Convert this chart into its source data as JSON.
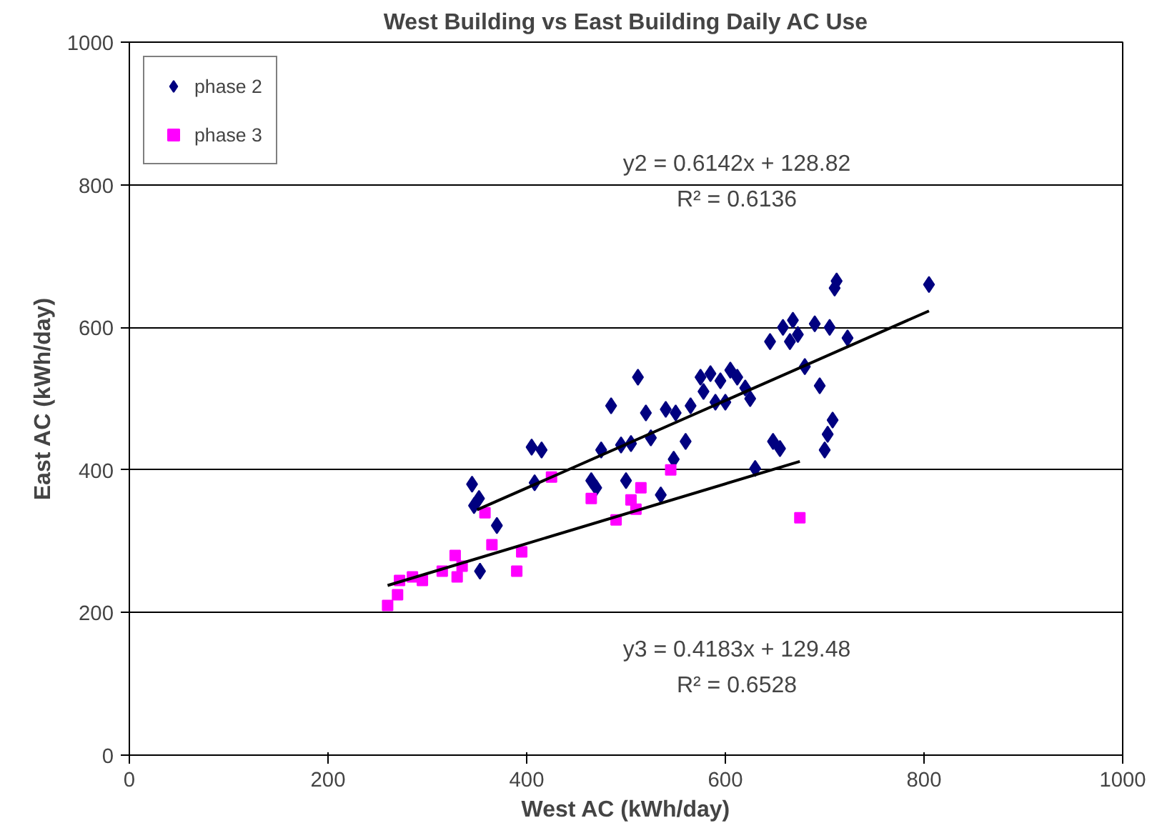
{
  "chart_data": {
    "type": "scatter",
    "title": "West Building vs East Building Daily AC Use",
    "xlabel": "West AC (kWh/day)",
    "ylabel": "East AC (kWh/day)",
    "xlim": [
      0,
      1000
    ],
    "ylim": [
      0,
      1000
    ],
    "xticks": [
      0,
      200,
      400,
      600,
      800,
      1000
    ],
    "yticks": [
      0,
      200,
      400,
      600,
      800,
      1000
    ],
    "grid": "y",
    "legend": "top left",
    "series": [
      {
        "name": "phase 2",
        "color": "#000080",
        "marker": "diamond",
        "x": [
          345,
          347,
          352,
          353,
          370,
          405,
          415,
          408,
          465,
          470,
          475,
          485,
          495,
          500,
          505,
          512,
          520,
          525,
          535,
          540,
          548,
          550,
          560,
          565,
          575,
          578,
          585,
          590,
          595,
          605,
          612,
          620,
          625,
          630,
          645,
          648,
          655,
          658,
          665,
          668,
          673,
          680,
          690,
          695,
          700,
          703,
          708,
          705,
          710,
          712,
          723,
          805,
          600
        ],
        "values": [
          380,
          350,
          360,
          258,
          322,
          432,
          428,
          382,
          385,
          375,
          428,
          490,
          435,
          385,
          437,
          530,
          480,
          445,
          365,
          485,
          415,
          480,
          440,
          490,
          530,
          510,
          535,
          495,
          525,
          540,
          530,
          515,
          500,
          402,
          580,
          440,
          430,
          600,
          580,
          610,
          590,
          545,
          605,
          518,
          428,
          450,
          470,
          600,
          655,
          665,
          585,
          660,
          495
        ]
      },
      {
        "name": "phase 3",
        "color": "#ff00ff",
        "marker": "square",
        "x": [
          260,
          270,
          272,
          285,
          295,
          315,
          328,
          330,
          335,
          358,
          365,
          390,
          395,
          425,
          465,
          490,
          505,
          510,
          515,
          545,
          675
        ],
        "values": [
          210,
          225,
          245,
          250,
          245,
          258,
          280,
          250,
          265,
          340,
          295,
          258,
          285,
          390,
          360,
          330,
          358,
          345,
          375,
          400,
          333
        ]
      },
      {
        "type": "line",
        "color": "#000000",
        "x": [
          350,
          805
        ],
        "values": [
          344,
          623
        ]
      },
      {
        "type": "line",
        "color": "#000000",
        "x": [
          260,
          675
        ],
        "values": [
          238,
          412
        ]
      }
    ],
    "annotations": [
      "y2 = 0.6142x + 128.82",
      "R² = 0.6136",
      "y3 = 0.4183x + 129.48",
      "R² = 0.6528"
    ]
  }
}
